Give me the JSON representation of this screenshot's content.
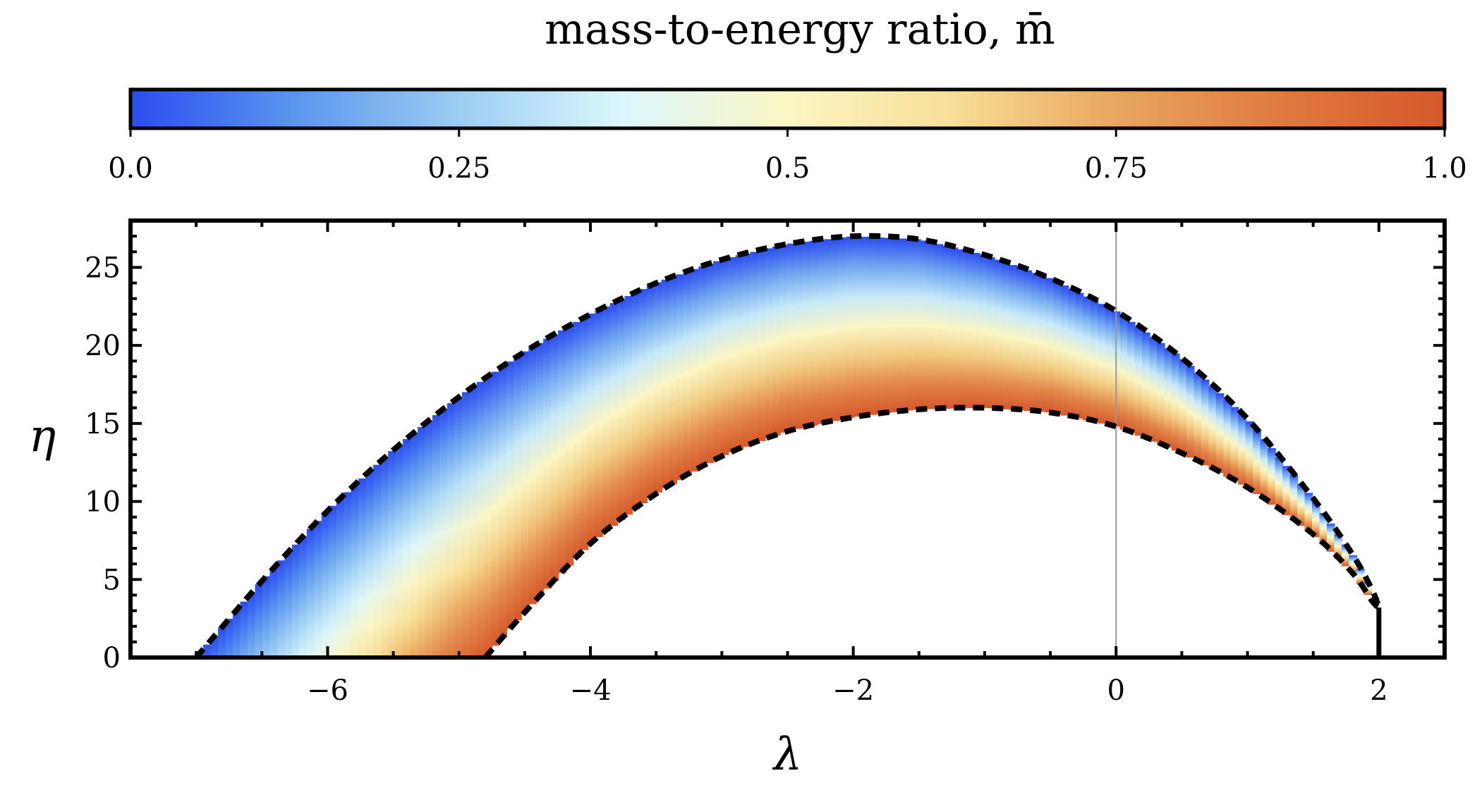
{
  "chart_data": {
    "type": "heatmap",
    "description_of_region": "Filled band between two dashed boundary curves; color encodes mass-to-energy ratio",
    "colorbar": {
      "title": "mass-to-energy ratio, m̄",
      "range": [
        0.0,
        1.0
      ],
      "ticks": [
        0.0,
        0.25,
        0.5,
        0.75,
        1.0
      ],
      "tick_labels": [
        "0.0",
        "0.25",
        "0.5",
        "0.75",
        "1.0"
      ],
      "colormap": [
        "#2a4df0",
        "#5a96ee",
        "#9ccdf3",
        "#dcf7fb",
        "#fbf6c4",
        "#f7df96",
        "#e9a660",
        "#e07a40",
        "#d5582c"
      ]
    },
    "xlabel": "λ",
    "ylabel": "η",
    "xlim": [
      -7.5,
      2.5
    ],
    "ylim": [
      0,
      28
    ],
    "xticks": [
      -6,
      -4,
      -2,
      0,
      2
    ],
    "xtick_labels": [
      "−6",
      "−4",
      "−2",
      "0",
      "2"
    ],
    "yticks": [
      0,
      5,
      10,
      15,
      20,
      25
    ],
    "ytick_labels": [
      "0",
      "5",
      "10",
      "15",
      "20",
      "25"
    ],
    "series": [
      {
        "name": "upper boundary (m̄ = 0)",
        "style": "dashed",
        "x": [
          -7.0,
          -6.5,
          -6.0,
          -5.5,
          -5.0,
          -4.5,
          -4.0,
          -3.5,
          -3.0,
          -2.5,
          -2.0,
          -1.5,
          -1.0,
          -0.5,
          0.0,
          0.5,
          1.0,
          1.5,
          1.8,
          1.95,
          2.0
        ],
        "y": [
          0,
          4.9,
          9.4,
          13.3,
          16.7,
          19.6,
          22.0,
          24.0,
          25.5,
          26.5,
          27.0,
          26.8,
          25.8,
          24.3,
          22.2,
          19.2,
          15.3,
          10.2,
          6.6,
          4.3,
          3.2
        ]
      },
      {
        "name": "lower boundary (m̄ = 1)",
        "style": "dashed",
        "x": [
          -4.8,
          -4.5,
          -4.0,
          -3.5,
          -3.0,
          -2.5,
          -2.0,
          -1.5,
          -1.0,
          -0.5,
          0.0,
          0.5,
          1.0,
          1.5,
          1.8,
          1.95,
          2.0
        ],
        "y": [
          0,
          2.9,
          7.3,
          10.5,
          12.9,
          14.5,
          15.4,
          15.9,
          16.0,
          15.7,
          14.8,
          13.1,
          10.9,
          7.9,
          5.4,
          3.6,
          3.2
        ]
      },
      {
        "name": "vertical segment at lambda = 2",
        "style": "solid",
        "x": [
          2.0,
          2.0
        ],
        "y": [
          0,
          3.2
        ]
      },
      {
        "name": "reference line lambda = 0",
        "style": "thin-gray",
        "x": [
          0,
          0
        ],
        "y": [
          0,
          28
        ]
      }
    ]
  }
}
